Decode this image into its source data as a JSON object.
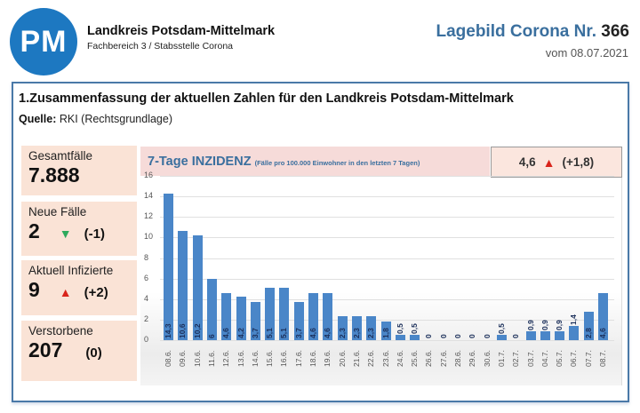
{
  "header": {
    "logo_text": "PM",
    "org_title": "Landkreis Potsdam-Mittelmark",
    "org_subtitle": "Fachbereich 3 / Stabsstelle Corona",
    "report_title": "Lagebild Corona Nr.",
    "report_number": "366",
    "report_date": "vom 08.07.2021"
  },
  "section": {
    "title": "1.Zusammenfassung der aktuellen Zahlen für den Landkreis Potsdam-Mittelmark",
    "source_label": "Quelle:",
    "source_value": "RKI (Rechtsgrundlage)"
  },
  "stats": [
    {
      "label": "Gesamtfälle",
      "value": "7.888",
      "arrow": "",
      "delta": ""
    },
    {
      "label": "Neue Fälle",
      "value": "2",
      "arrow": "▼",
      "delta": "(-1)"
    },
    {
      "label": "Aktuell Infizierte",
      "value": "9",
      "arrow": "▲",
      "delta": "(+2)"
    },
    {
      "label": "Verstorbene",
      "value": "207",
      "arrow": "",
      "delta": "(0)"
    }
  ],
  "incidence": {
    "title": "7-Tage INZIDENZ",
    "subtitle": "(Fälle pro 100.000 Einwohner in den letzten 7 Tagen)",
    "current": "4,6",
    "arrow": "▲",
    "change": "(+1,8)"
  },
  "colors": {
    "brand_blue": "#1d78c1",
    "title_blue": "#3a6f9e",
    "bar_blue": "#4a86c8",
    "stat_bg": "#fae3d6",
    "up_red": "#d9241b",
    "down_green": "#2eaa5c"
  },
  "chart_data": {
    "type": "bar",
    "title": "7-Tage INZIDENZ",
    "subtitle": "(Fälle pro 100.000 Einwohner in den letzten 7 Tagen)",
    "xlabel": "",
    "ylabel": "",
    "ylim": [
      0,
      16
    ],
    "yticks": [
      0,
      2,
      4,
      6,
      8,
      10,
      12,
      14,
      16
    ],
    "grid": true,
    "legend": "none",
    "categories": [
      "08.6.",
      "09.6.",
      "10.6.",
      "11.6.",
      "12.6.",
      "13.6.",
      "14.6.",
      "15.6.",
      "16.6.",
      "17.6.",
      "18.6.",
      "19.6.",
      "20.6.",
      "21.6.",
      "22.6.",
      "23.6.",
      "24.6.",
      "25.6.",
      "26.6.",
      "27.6.",
      "28.6.",
      "29.6.",
      "30.6.",
      "01.7.",
      "02.7.",
      "03.7.",
      "04.7.",
      "05.7.",
      "06.7.",
      "07.7.",
      "08.7."
    ],
    "values": [
      14.3,
      10.6,
      10.2,
      6,
      4.6,
      4.2,
      3.7,
      5.1,
      5.1,
      3.7,
      4.6,
      4.6,
      2.3,
      2.3,
      2.3,
      1.8,
      0.5,
      0.5,
      0,
      0,
      0,
      0,
      0,
      0.5,
      0,
      0.9,
      0.9,
      0.9,
      1.4,
      2.8,
      4.6
    ],
    "data_labels": [
      "14,3",
      "10,6",
      "10,2",
      "6",
      "4,6",
      "4,2",
      "3,7",
      "5,1",
      "5,1",
      "3,7",
      "4,6",
      "4,6",
      "2,3",
      "2,3",
      "2,3",
      "1,8",
      "0,5",
      "0,5",
      "0",
      "0",
      "0",
      "0",
      "0",
      "0,5",
      "0",
      "0,9",
      "0,9",
      "0,9",
      "1,4",
      "2,8",
      "4,6"
    ]
  }
}
